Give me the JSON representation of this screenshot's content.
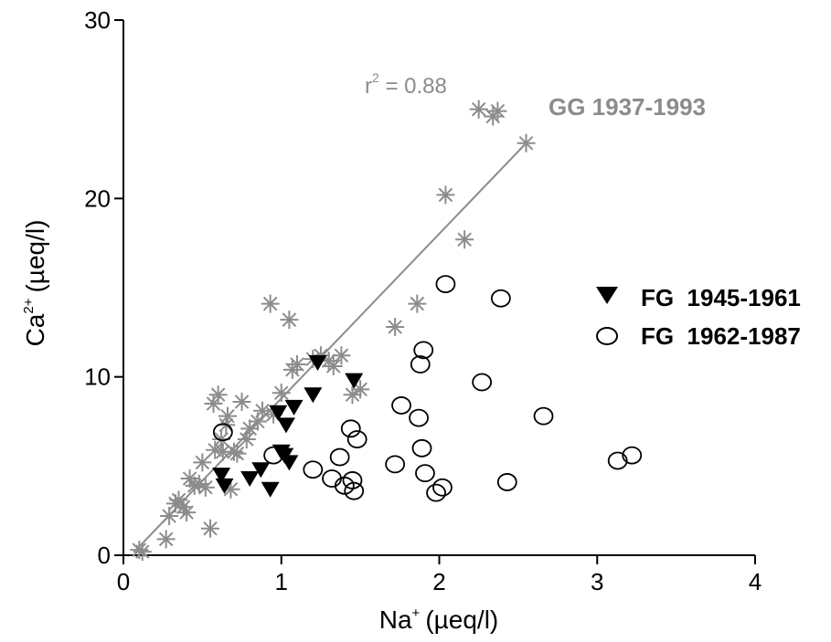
{
  "chart_data": {
    "type": "scatter",
    "xlabel": {
      "base": "Na",
      "sup": "+",
      "unit": "(µeq/l)"
    },
    "ylabel": {
      "base": "Ca",
      "sup": "2+",
      "unit": "(µeq/l)"
    },
    "xlim": [
      0,
      4
    ],
    "ylim": [
      0,
      30
    ],
    "xticks": [
      0,
      1,
      2,
      3,
      4
    ],
    "yticks": [
      0,
      10,
      20,
      30
    ],
    "xtick_labels": [
      "0",
      "1",
      "2",
      "3",
      "4"
    ],
    "ytick_labels": [
      "0",
      "10",
      "20",
      "30"
    ],
    "grid": false,
    "legend_position": "right",
    "colors": {
      "gg": "#8c8c8c",
      "fg": "#000000"
    },
    "annotations": {
      "series_label": "GG 1937-1993",
      "r2_base": "r",
      "r2_sup": "2",
      "r2_value": " = 0.88"
    },
    "regression_line": {
      "x": [
        0.08,
        2.55
      ],
      "y": [
        0.3,
        23.1
      ]
    },
    "series": [
      {
        "name": "GG 1937-1993",
        "marker": "asterisk",
        "x": [
          0.1,
          0.12,
          0.27,
          0.29,
          0.33,
          0.35,
          0.38,
          0.4,
          0.42,
          0.45,
          0.48,
          0.5,
          0.52,
          0.55,
          0.57,
          0.58,
          0.6,
          0.62,
          0.63,
          0.65,
          0.66,
          0.68,
          0.7,
          0.72,
          0.75,
          0.78,
          0.8,
          0.85,
          0.88,
          0.93,
          0.95,
          1.0,
          1.05,
          1.07,
          1.1,
          1.2,
          1.25,
          1.3,
          1.33,
          1.38,
          1.45,
          1.5,
          1.72,
          1.86,
          2.04,
          2.16,
          2.25,
          2.34,
          2.37,
          2.55
        ],
        "y": [
          0.3,
          0.2,
          0.9,
          2.2,
          2.9,
          3.1,
          2.7,
          2.4,
          4.3,
          3.9,
          4.0,
          5.2,
          3.8,
          1.5,
          8.5,
          5.9,
          9.0,
          6.5,
          5.8,
          7.3,
          7.8,
          3.7,
          5.8,
          5.7,
          8.6,
          6.5,
          7.1,
          7.5,
          8.1,
          14.1,
          7.9,
          9.1,
          13.2,
          10.4,
          10.7,
          11.0,
          11.2,
          10.9,
          10.6,
          11.2,
          9.0,
          9.3,
          12.8,
          14.1,
          20.2,
          17.7,
          25.0,
          24.6,
          24.9,
          23.1
        ]
      },
      {
        "name": "FG 1945-1961",
        "marker": "triangle-down",
        "x": [
          0.62,
          0.64,
          0.8,
          0.87,
          0.93,
          0.98,
          1.0,
          1.02,
          1.03,
          1.05,
          1.08,
          1.2,
          1.23,
          1.46
        ],
        "y": [
          4.5,
          3.9,
          4.3,
          4.8,
          3.7,
          8.0,
          5.8,
          5.6,
          7.3,
          5.2,
          8.3,
          9.0,
          10.8,
          9.8
        ]
      },
      {
        "name": "FG 1962-1987",
        "marker": "circle-open",
        "x": [
          0.63,
          0.95,
          1.2,
          1.32,
          1.37,
          1.4,
          1.44,
          1.45,
          1.46,
          1.48,
          1.72,
          1.76,
          1.87,
          1.88,
          1.89,
          1.9,
          1.91,
          1.98,
          2.02,
          2.04,
          2.27,
          2.39,
          2.43,
          2.66,
          3.13,
          3.22
        ],
        "y": [
          6.9,
          5.6,
          4.8,
          4.3,
          5.5,
          3.9,
          7.1,
          4.2,
          3.6,
          6.5,
          5.1,
          8.4,
          7.7,
          10.7,
          6.0,
          11.5,
          4.6,
          3.5,
          3.8,
          15.2,
          9.7,
          14.4,
          4.1,
          7.8,
          5.3,
          5.6
        ]
      }
    ],
    "legend": [
      {
        "label": "FG  1945-1961",
        "marker": "triangle-down"
      },
      {
        "label": "FG  1962-1987",
        "marker": "circle-open"
      }
    ]
  }
}
